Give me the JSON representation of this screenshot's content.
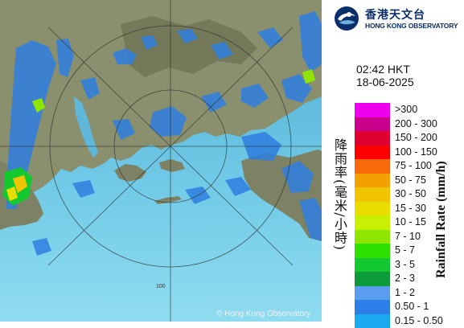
{
  "brand": {
    "name_cn": "香港天文台",
    "name_en": "HONG KONG OBSERVATORY",
    "color": "#0b2f6b"
  },
  "timestamp": {
    "time": "02:42 HKT",
    "date": "18-06-2025"
  },
  "map": {
    "range_ring_label": "100",
    "copyright": "© Hong Kong Observatory",
    "sea_color": "#6fc9e6",
    "land_color": "#8a8f6e",
    "echo_color": "#2f7fe0"
  },
  "legend": {
    "title_cn": "降雨率(毫米/小時)",
    "title_en": "Rainfall Rate (mm/h)",
    "items": [
      {
        "label": ">300",
        "color": "#ee00ee"
      },
      {
        "label": "200 - 300",
        "color": "#c8008c"
      },
      {
        "label": "150 - 200",
        "color": "#e00030"
      },
      {
        "label": "100 - 150",
        "color": "#ff0000"
      },
      {
        "label": "75 - 100",
        "color": "#f86a0a"
      },
      {
        "label": "50 - 75",
        "color": "#f4a000"
      },
      {
        "label": "30 - 50",
        "color": "#f0c400"
      },
      {
        "label": "15 - 30",
        "color": "#e8dc00"
      },
      {
        "label": "10 - 15",
        "color": "#c8f000"
      },
      {
        "label": "7 - 10",
        "color": "#8ee600"
      },
      {
        "label": "5 - 7",
        "color": "#2ee000"
      },
      {
        "label": "3 - 5",
        "color": "#14c830"
      },
      {
        "label": "2 - 3",
        "color": "#0c9a3a"
      },
      {
        "label": "1 - 2",
        "color": "#5a9cf0"
      },
      {
        "label": "0.50 - 1",
        "color": "#2c7ee8"
      },
      {
        "label": "0.15 - 0.50",
        "color": "#1aa8f0"
      }
    ]
  }
}
